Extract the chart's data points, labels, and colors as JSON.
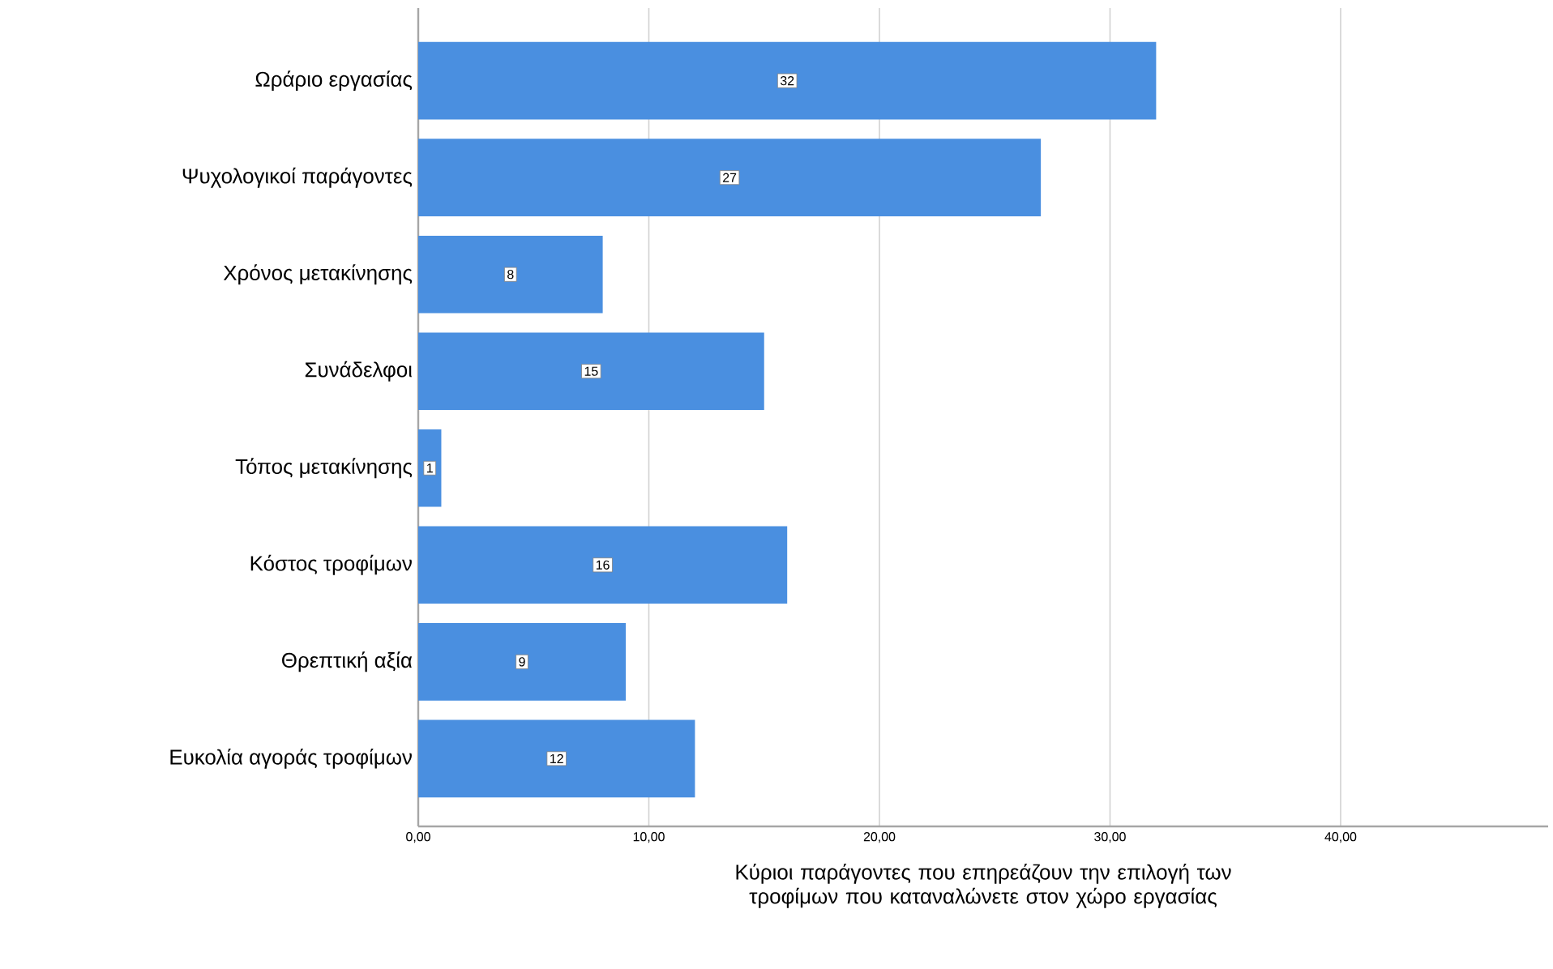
{
  "chart_data": {
    "type": "bar",
    "orientation": "horizontal",
    "xlabel": "Κύριοι παράγοντες που επηρεάζουν την επιλογή των τροφίμων που καταναλώνετε στον χώρο εργασίας",
    "categories": [
      "Ωράριο εργασίας",
      "Ψυχολογικοί παράγοντες",
      "Χρόνος μετακίνησης",
      "Συνάδελφοι",
      "Τόπος μετακίνησης",
      "Κόστος τροφίμων",
      "Θρεπτική αξία",
      "Ευκολία αγοράς τροφίμων"
    ],
    "values": [
      32,
      27,
      8,
      15,
      1,
      16,
      9,
      12
    ],
    "color": "#4a8fe0",
    "xlim": [
      0,
      49
    ],
    "xticks": [
      {
        "value": 0,
        "label": "0,00"
      },
      {
        "value": 10,
        "label": "10,00"
      },
      {
        "value": 20,
        "label": "20,00"
      },
      {
        "value": 30,
        "label": "30,00"
      },
      {
        "value": 40,
        "label": "40,00"
      }
    ],
    "grid": "x",
    "data_labels": true
  }
}
